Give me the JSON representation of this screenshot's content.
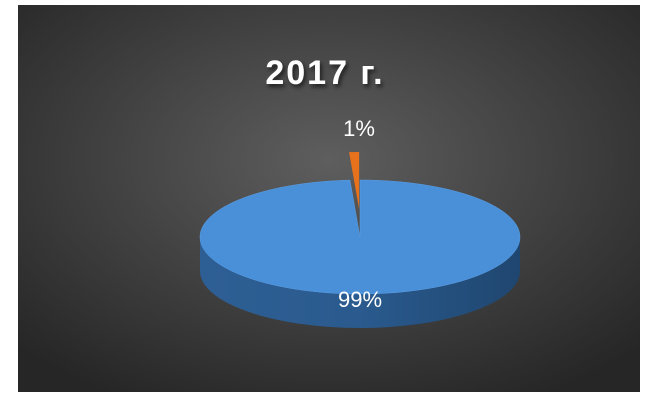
{
  "chart_data": {
    "type": "pie",
    "title": "2017 г.",
    "values": [
      99,
      1
    ],
    "value_labels": [
      "99%",
      "1%"
    ],
    "colors": [
      "#4a90d9",
      "#e8721c"
    ]
  }
}
